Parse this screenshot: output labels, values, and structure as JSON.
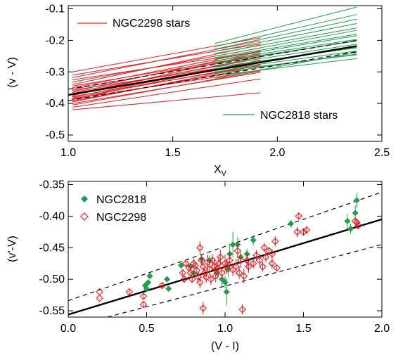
{
  "colors": {
    "ngc2298": "#e8191f",
    "ngc2818": "#1f9e4e",
    "fit": "#000000"
  },
  "chart_data": [
    {
      "type": "line",
      "xlabel": "X",
      "xlabel_sub": "V",
      "ylabel": "(v - V)",
      "xlim": [
        1.0,
        2.5
      ],
      "ylim": [
        -0.52,
        -0.09
      ],
      "x_ticks": [
        1.0,
        1.5,
        2.0,
        2.5
      ],
      "x_tick_labels": [
        "1.0",
        "1.5",
        "2.0",
        "2.5"
      ],
      "y_ticks": [
        -0.5,
        -0.4,
        -0.3,
        -0.2,
        -0.1
      ],
      "y_tick_labels": [
        "-0.5",
        "-0.4",
        "-0.3",
        "-0.2",
        "-0.1"
      ],
      "grid": false,
      "legend": [
        {
          "label": "NGC2298 stars",
          "color": "#e8191f",
          "position": "top-left"
        },
        {
          "label": "NGC2818 stars",
          "color": "#1f9e4e",
          "position": "bottom-right"
        }
      ],
      "series": [
        {
          "name": "NGC2298 stars",
          "color": "#e8191f",
          "x_range": [
            1.02,
            1.92
          ],
          "start_values": [
            -0.3,
            -0.31,
            -0.318,
            -0.325,
            -0.332,
            -0.34,
            -0.345,
            -0.35,
            -0.355,
            -0.358,
            -0.362,
            -0.365,
            -0.368,
            -0.37,
            -0.372,
            -0.375,
            -0.378,
            -0.38,
            -0.383,
            -0.385,
            -0.388,
            -0.392,
            -0.395,
            -0.4,
            -0.405,
            -0.412,
            -0.42
          ],
          "slopes": [
            0.12,
            0.11,
            0.13,
            0.1,
            0.12,
            0.14,
            0.11,
            0.13,
            0.12,
            0.1,
            0.14,
            0.12,
            0.11,
            0.13,
            0.12,
            0.15,
            0.11,
            0.13,
            0.12,
            0.1,
            0.14,
            0.12,
            0.13,
            0.11,
            0.12,
            0.1,
            0.06
          ]
        },
        {
          "name": "NGC2818 stars",
          "color": "#1f9e4e",
          "x_range": [
            1.7,
            2.38
          ],
          "start_values": [
            -0.21,
            -0.22,
            -0.228,
            -0.235,
            -0.242,
            -0.25,
            -0.255,
            -0.26,
            -0.265,
            -0.27,
            -0.275,
            -0.28,
            -0.285,
            -0.29,
            -0.295,
            -0.3,
            -0.305,
            -0.312,
            -0.32
          ],
          "slopes": [
            0.17,
            0.15,
            0.14,
            0.13,
            0.12,
            0.12,
            0.11,
            0.11,
            0.1,
            0.1,
            0.11,
            0.1,
            0.09,
            0.1,
            0.09,
            0.08,
            0.09,
            0.08,
            0.12
          ]
        },
        {
          "name": "fit",
          "color": "#000000",
          "x": [
            1.0,
            2.38
          ],
          "values": [
            -0.373,
            -0.218
          ]
        },
        {
          "name": "fit upper",
          "color": "#000000",
          "dashed": true,
          "x": [
            1.0,
            2.38
          ],
          "values": [
            -0.355,
            -0.2
          ]
        },
        {
          "name": "fit lower",
          "color": "#000000",
          "dashed": true,
          "x": [
            1.0,
            2.38
          ],
          "values": [
            -0.391,
            -0.236
          ]
        }
      ]
    },
    {
      "type": "scatter",
      "xlabel": "(V - I)",
      "ylabel": "(v'-V)",
      "xlim": [
        0.0,
        2.0
      ],
      "ylim": [
        -0.56,
        -0.345
      ],
      "x_ticks": [
        0.0,
        0.5,
        1.0,
        1.5,
        2.0
      ],
      "x_tick_labels": [
        "0.0",
        "0.5",
        "1.0",
        "1.5",
        "2.0"
      ],
      "y_ticks": [
        -0.55,
        -0.5,
        -0.45,
        -0.4,
        -0.35
      ],
      "y_tick_labels": [
        "-0.55",
        "-0.50",
        "-0.45",
        "-0.40",
        "-0.35"
      ],
      "grid": false,
      "legend": [
        {
          "label": "NGC2818",
          "color": "#1f9e4e",
          "marker": "filled-diamond",
          "position": "top-left"
        },
        {
          "label": "NGC2298",
          "color": "#e8191f",
          "marker": "open-diamond",
          "position": "top-left"
        }
      ],
      "series": [
        {
          "name": "NGC2818",
          "color": "#1f9e4e",
          "marker": "filled-diamond",
          "points": [
            [
              0.49,
              -0.51
            ],
            [
              0.5,
              -0.515
            ],
            [
              0.51,
              -0.505
            ],
            [
              0.52,
              -0.495
            ],
            [
              0.63,
              -0.5
            ],
            [
              0.64,
              -0.515
            ],
            [
              0.72,
              -0.478
            ],
            [
              0.78,
              -0.48
            ],
            [
              0.8,
              -0.49
            ],
            [
              0.85,
              -0.468
            ],
            [
              0.9,
              -0.47
            ],
            [
              0.95,
              -0.49
            ],
            [
              0.98,
              -0.5
            ],
            [
              1.0,
              -0.505
            ],
            [
              1.01,
              -0.52
            ],
            [
              1.02,
              -0.485
            ],
            [
              1.03,
              -0.46
            ],
            [
              1.05,
              -0.445
            ],
            [
              1.08,
              -0.445
            ],
            [
              1.1,
              -0.465
            ],
            [
              1.14,
              -0.46
            ],
            [
              1.18,
              -0.438
            ],
            [
              1.42,
              -0.412
            ],
            [
              1.78,
              -0.408
            ],
            [
              1.8,
              -0.42
            ],
            [
              1.83,
              -0.395
            ],
            [
              1.84,
              -0.375
            ]
          ],
          "errors": [
            0.004,
            0.004,
            0.004,
            0.005,
            0.004,
            0.004,
            0.005,
            0.005,
            0.006,
            0.006,
            0.008,
            0.01,
            0.012,
            0.01,
            0.022,
            0.012,
            0.015,
            0.02,
            0.012,
            0.008,
            0.008,
            0.008,
            0.006,
            0.012,
            0.008,
            0.012,
            0.012
          ]
        },
        {
          "name": "NGC2298",
          "color": "#e8191f",
          "marker": "open-diamond",
          "points": [
            [
              0.2,
              -0.52
            ],
            [
              0.2,
              -0.53
            ],
            [
              0.39,
              -0.52
            ],
            [
              0.48,
              -0.527
            ],
            [
              0.48,
              -0.54
            ],
            [
              0.6,
              -0.51
            ],
            [
              0.73,
              -0.49
            ],
            [
              0.74,
              -0.5
            ],
            [
              0.75,
              -0.475
            ],
            [
              0.77,
              -0.482
            ],
            [
              0.78,
              -0.49
            ],
            [
              0.79,
              -0.5
            ],
            [
              0.8,
              -0.475
            ],
            [
              0.81,
              -0.478
            ],
            [
              0.82,
              -0.486
            ],
            [
              0.83,
              -0.496
            ],
            [
              0.84,
              -0.45
            ],
            [
              0.84,
              -0.505
            ],
            [
              0.85,
              -0.47
            ],
            [
              0.86,
              -0.48
            ],
            [
              0.86,
              -0.546
            ],
            [
              0.87,
              -0.49
            ],
            [
              0.88,
              -0.497
            ],
            [
              0.89,
              -0.473
            ],
            [
              0.9,
              -0.484
            ],
            [
              0.91,
              -0.5
            ],
            [
              0.92,
              -0.47
            ],
            [
              0.93,
              -0.48
            ],
            [
              0.94,
              -0.495
            ],
            [
              0.95,
              -0.483
            ],
            [
              0.96,
              -0.475
            ],
            [
              0.97,
              -0.465
            ],
            [
              0.98,
              -0.49
            ],
            [
              1.0,
              -0.475
            ],
            [
              1.01,
              -0.48
            ],
            [
              1.03,
              -0.47
            ],
            [
              1.05,
              -0.485
            ],
            [
              1.07,
              -0.48
            ],
            [
              1.08,
              -0.455
            ],
            [
              1.09,
              -0.49
            ],
            [
              1.1,
              -0.47
            ],
            [
              1.11,
              -0.548
            ],
            [
              1.12,
              -0.495
            ],
            [
              1.14,
              -0.47
            ],
            [
              1.15,
              -0.48
            ],
            [
              1.18,
              -0.475
            ],
            [
              1.2,
              -0.462
            ],
            [
              1.22,
              -0.47
            ],
            [
              1.24,
              -0.48
            ],
            [
              1.25,
              -0.45
            ],
            [
              1.26,
              -0.465
            ],
            [
              1.28,
              -0.455
            ],
            [
              1.3,
              -0.46
            ],
            [
              1.3,
              -0.475
            ],
            [
              1.32,
              -0.44
            ],
            [
              1.33,
              -0.482
            ],
            [
              1.46,
              -0.425
            ],
            [
              1.47,
              -0.4
            ],
            [
              1.5,
              -0.425
            ],
            [
              1.52,
              -0.422
            ],
            [
              1.83,
              -0.408
            ],
            [
              1.84,
              -0.41
            ],
            [
              1.85,
              -0.415
            ]
          ],
          "errors": [
            0,
            0,
            0.004,
            0.004,
            0.004,
            0.004,
            0.006,
            0.005,
            0.005,
            0.006,
            0.007,
            0.006,
            0.008,
            0.006,
            0.007,
            0.008,
            0.01,
            0.009,
            0.008,
            0.009,
            0.01,
            0.01,
            0.009,
            0.012,
            0.01,
            0.009,
            0.01,
            0.012,
            0.01,
            0.012,
            0.01,
            0.012,
            0.01,
            0.014,
            0.012,
            0.015,
            0.01,
            0.012,
            0.012,
            0.01,
            0.012,
            0.008,
            0.012,
            0.012,
            0.01,
            0.008,
            0.008,
            0.01,
            0.008,
            0.008,
            0.008,
            0.006,
            0.008,
            0.008,
            0.008,
            0.006,
            0.008,
            0.006,
            0.006,
            0.006,
            0.005,
            0.005,
            0.005
          ]
        },
        {
          "name": "fit",
          "color": "#000000",
          "x": [
            0.0,
            2.0
          ],
          "values": [
            -0.556,
            -0.405
          ]
        },
        {
          "name": "fit upper",
          "color": "#000000",
          "dashed": true,
          "x": [
            0.0,
            2.0
          ],
          "values": [
            -0.534,
            -0.362
          ]
        },
        {
          "name": "fit lower",
          "color": "#000000",
          "dashed": true,
          "x": [
            0.25,
            2.0
          ],
          "values": [
            -0.56,
            -0.445
          ]
        }
      ]
    }
  ]
}
